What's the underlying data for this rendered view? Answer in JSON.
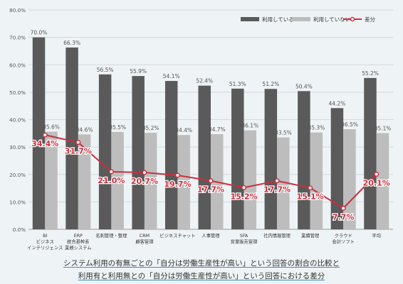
{
  "chart_data": {
    "type": "bar",
    "categories": [
      [
        "BI",
        "ビジネス",
        "インテリジェンス"
      ],
      [
        "ERP",
        "統合基幹系",
        "業務システム"
      ],
      [
        "名刺管理・整理"
      ],
      [
        "CRM",
        "顧客管理"
      ],
      [
        "ビジネスチャット"
      ],
      [
        "人事管理"
      ],
      [
        "SFA",
        "営業販売管理"
      ],
      [
        "社内情報管理"
      ],
      [
        "業績管理"
      ],
      [
        "クラウド",
        "会計ソフト"
      ],
      [
        "平均"
      ]
    ],
    "series": [
      {
        "name": "利用している",
        "type": "bar",
        "color": "#5a5a5a",
        "values": [
          70.0,
          66.3,
          56.5,
          55.9,
          54.1,
          52.4,
          51.3,
          51.2,
          50.4,
          44.2,
          55.2
        ],
        "labels": [
          "70.0%",
          "66.3%",
          "56.5%",
          "55.9%",
          "54.1%",
          "52.4%",
          "51.3%",
          "51.2%",
          "50.4%",
          "44.2%",
          "55.2%"
        ]
      },
      {
        "name": "利用していない",
        "type": "bar",
        "color": "#bdbdbd",
        "values": [
          35.6,
          34.6,
          35.5,
          35.2,
          34.4,
          34.7,
          36.1,
          33.5,
          35.3,
          36.5,
          35.1
        ],
        "labels": [
          "35.6%",
          "34.6%",
          "35.5%",
          "35.2%",
          "34.4%",
          "34.7%",
          "36.1%",
          "33.5%",
          "35.3%",
          "36.5%",
          "35.1%"
        ]
      },
      {
        "name": "差分",
        "type": "line",
        "color": "#cc2e3f",
        "values": [
          34.4,
          31.7,
          21.0,
          20.7,
          19.7,
          17.7,
          15.2,
          17.7,
          15.1,
          7.7,
          20.1
        ],
        "labels": [
          "34.4%",
          "31.7%",
          "21.0%",
          "20.7%",
          "19.7%",
          "17.7%",
          "15.2%",
          "17.7%",
          "15.1%",
          "7.7%",
          "20.1%"
        ]
      }
    ],
    "ylim": [
      0,
      80
    ],
    "yticks": [
      "0.0%",
      "10.0%",
      "20.0%",
      "30.0%",
      "40.0%",
      "50.0%",
      "60.0%",
      "70.0%",
      "80.0%"
    ],
    "grid": true,
    "legend_position": "top-right"
  },
  "caption": {
    "line1": "システム利用の有無ごとの「自分は労働生産性が高い」という回答の割合の比較と",
    "line2": "利用有と利用無との「自分は労働生産性が高い」という回答における差分"
  }
}
